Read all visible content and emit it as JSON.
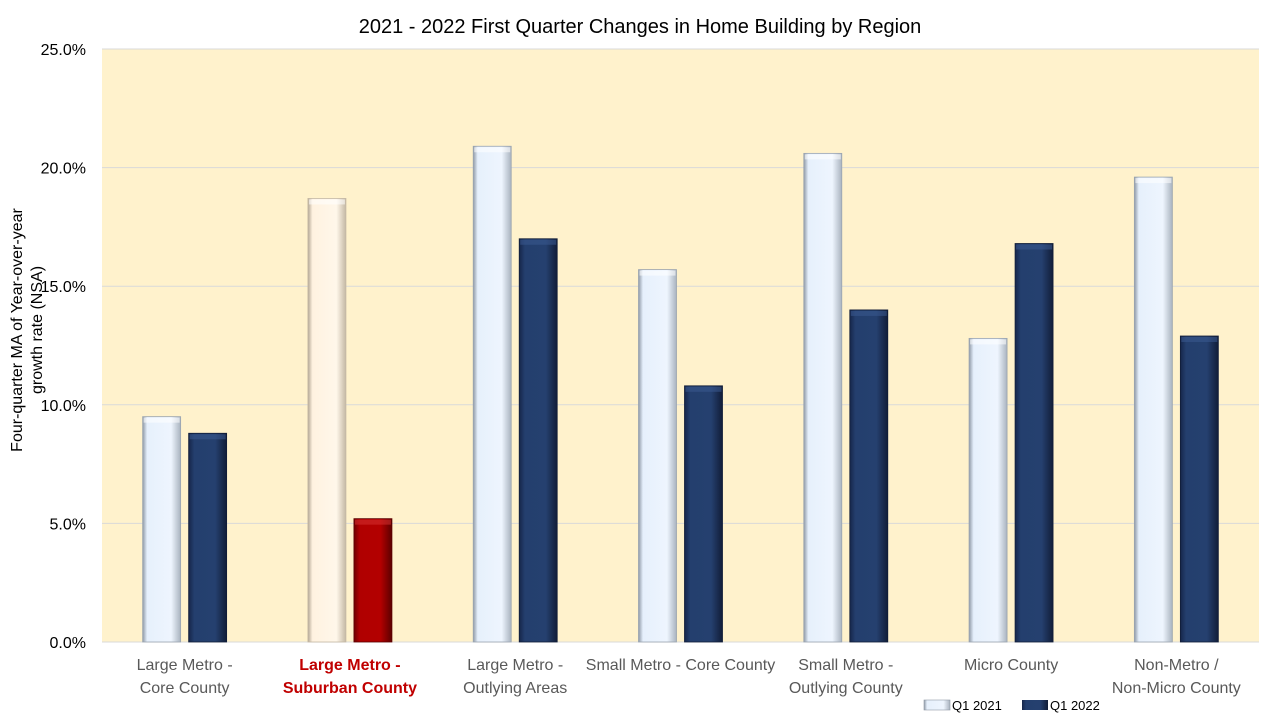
{
  "chart_data": {
    "type": "bar",
    "title": "2021 - 2022 First Quarter Changes in Home Building by Region",
    "ylabel": "Four-quarter MA of Year-over-year growth rate (NSA)",
    "xlabel": "",
    "ylim": [
      0,
      25
    ],
    "yticks": [
      "0.0%",
      "5.0%",
      "10.0%",
      "15.0%",
      "20.0%",
      "25.0%"
    ],
    "ytick_values": [
      0,
      5,
      10,
      15,
      20,
      25
    ],
    "categories": [
      "Large Metro - Core County",
      "Large Metro - Suburban County",
      "Large Metro - Outlying Areas",
      "Small Metro - Core County",
      "Small Metro - Outlying County",
      "Micro County",
      "Non-Metro / Non-Micro County"
    ],
    "category_label_lines": [
      [
        "Large Metro -",
        "Core County"
      ],
      [
        "Large Metro -",
        "Suburban County"
      ],
      [
        "Large Metro -",
        "Outlying Areas"
      ],
      [
        "Small Metro - Core County"
      ],
      [
        "Small Metro -",
        "Outlying County"
      ],
      [
        "Micro County"
      ],
      [
        "Non-Metro /",
        "Non-Micro County"
      ]
    ],
    "highlighted_category_index": 1,
    "series": [
      {
        "name": "Q1 2021",
        "values": [
          9.5,
          18.7,
          20.9,
          15.7,
          20.6,
          12.8,
          19.6
        ]
      },
      {
        "name": "Q1 2022",
        "values": [
          8.8,
          5.2,
          17.0,
          10.8,
          14.0,
          16.8,
          12.9
        ]
      }
    ],
    "legend_position": "bottom-right",
    "grid": true,
    "colors": {
      "plot_background": "#fff2cc",
      "gridline": "#d9d9d9",
      "q1_2021": "#e6f0fc",
      "q1_2022": "#203864",
      "highlight_q1_2021": "#fff2e0",
      "highlight_q1_2022": "#c00000",
      "highlight_label": "#c00000",
      "text": "#000000",
      "axis_text": "#595959"
    }
  }
}
